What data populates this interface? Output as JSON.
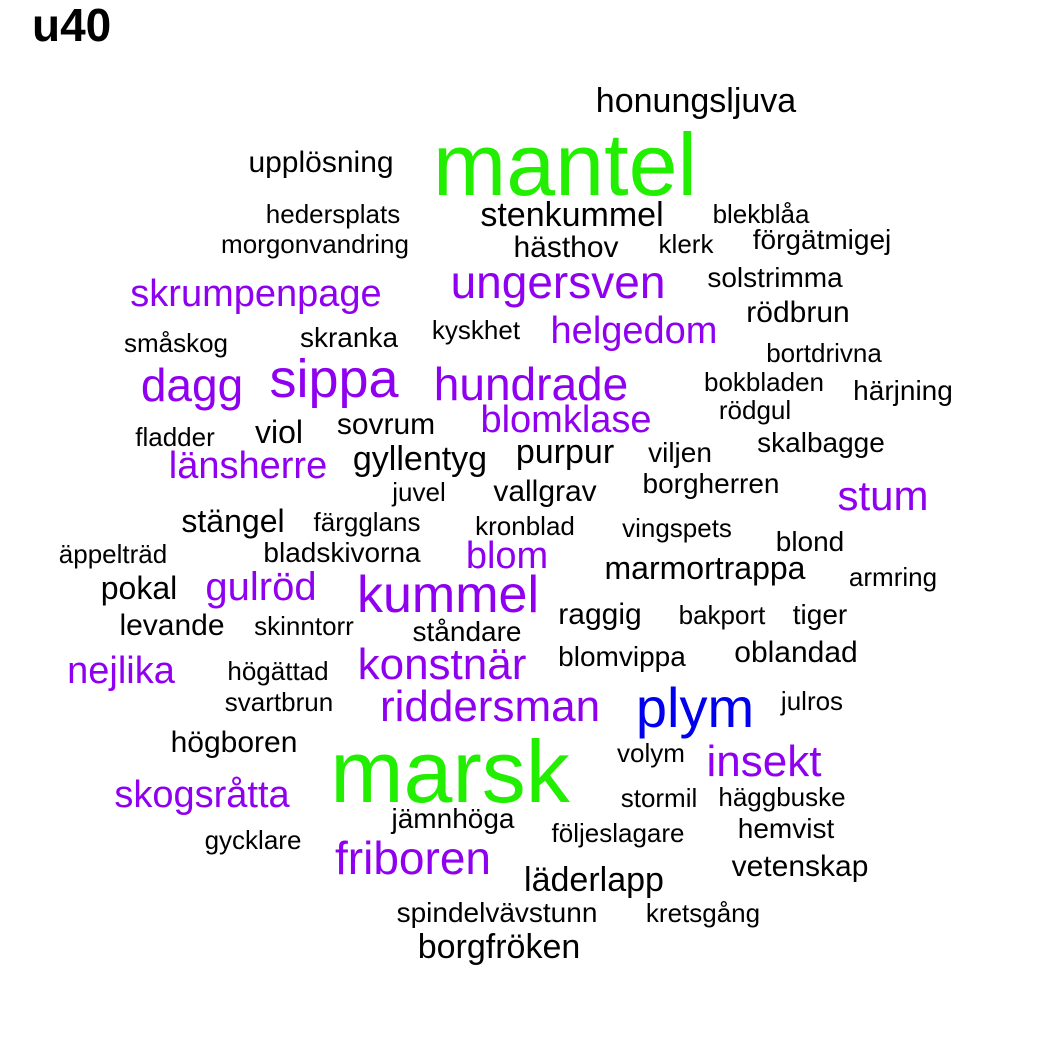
{
  "title": "u40",
  "colors": {
    "large": "#22ee00",
    "blue": "#0000ee",
    "purple": "#8f00f0",
    "black": "#000000"
  },
  "words": [
    {
      "text": "mantel",
      "color": "large"
    },
    {
      "text": "marsk",
      "color": "large"
    },
    {
      "text": "plym",
      "color": "blue"
    },
    {
      "text": "honungsljuva",
      "color": "black"
    },
    {
      "text": "upplösning",
      "color": "black"
    },
    {
      "text": "hedersplats",
      "color": "black"
    },
    {
      "text": "stenkummel",
      "color": "black"
    },
    {
      "text": "blekblåa",
      "color": "black"
    },
    {
      "text": "morgonvandring",
      "color": "black"
    },
    {
      "text": "hästhov",
      "color": "black"
    },
    {
      "text": "klerk",
      "color": "black"
    },
    {
      "text": "förgätmigej",
      "color": "black"
    },
    {
      "text": "skrumpenpage",
      "color": "purple"
    },
    {
      "text": "ungersven",
      "color": "purple"
    },
    {
      "text": "solstrimma",
      "color": "black"
    },
    {
      "text": "rödbrun",
      "color": "black"
    },
    {
      "text": "småskog",
      "color": "black"
    },
    {
      "text": "skranka",
      "color": "black"
    },
    {
      "text": "kyskhet",
      "color": "black"
    },
    {
      "text": "helgedom",
      "color": "purple"
    },
    {
      "text": "bortdrivna",
      "color": "black"
    },
    {
      "text": "dagg",
      "color": "purple"
    },
    {
      "text": "sippa",
      "color": "purple"
    },
    {
      "text": "hundrade",
      "color": "purple"
    },
    {
      "text": "bokbladen",
      "color": "black"
    },
    {
      "text": "härjning",
      "color": "black"
    },
    {
      "text": "rödgul",
      "color": "black"
    },
    {
      "text": "fladder",
      "color": "black"
    },
    {
      "text": "viol",
      "color": "black"
    },
    {
      "text": "sovrum",
      "color": "black"
    },
    {
      "text": "blomklase",
      "color": "purple"
    },
    {
      "text": "skalbagge",
      "color": "black"
    },
    {
      "text": "länsherre",
      "color": "purple"
    },
    {
      "text": "gyllentyg",
      "color": "black"
    },
    {
      "text": "purpur",
      "color": "black"
    },
    {
      "text": "viljen",
      "color": "black"
    },
    {
      "text": "juvel",
      "color": "black"
    },
    {
      "text": "vallgrav",
      "color": "black"
    },
    {
      "text": "borgherren",
      "color": "black"
    },
    {
      "text": "stum",
      "color": "purple"
    },
    {
      "text": "stängel",
      "color": "black"
    },
    {
      "text": "färgglans",
      "color": "black"
    },
    {
      "text": "kronblad",
      "color": "black"
    },
    {
      "text": "vingspets",
      "color": "black"
    },
    {
      "text": "blond",
      "color": "black"
    },
    {
      "text": "äppelträd",
      "color": "black"
    },
    {
      "text": "bladskivorna",
      "color": "black"
    },
    {
      "text": "blom",
      "color": "purple"
    },
    {
      "text": "marmortrappa",
      "color": "black"
    },
    {
      "text": "armring",
      "color": "black"
    },
    {
      "text": "pokal",
      "color": "black"
    },
    {
      "text": "gulröd",
      "color": "purple"
    },
    {
      "text": "kummel",
      "color": "purple"
    },
    {
      "text": "levande",
      "color": "black"
    },
    {
      "text": "skinntorr",
      "color": "black"
    },
    {
      "text": "ståndare",
      "color": "black"
    },
    {
      "text": "raggig",
      "color": "black"
    },
    {
      "text": "bakport",
      "color": "black"
    },
    {
      "text": "tiger",
      "color": "black"
    },
    {
      "text": "nejlika",
      "color": "purple"
    },
    {
      "text": "högättad",
      "color": "black"
    },
    {
      "text": "konstnär",
      "color": "purple"
    },
    {
      "text": "blomvippa",
      "color": "black"
    },
    {
      "text": "oblandad",
      "color": "black"
    },
    {
      "text": "svartbrun",
      "color": "black"
    },
    {
      "text": "riddersman",
      "color": "purple"
    },
    {
      "text": "julros",
      "color": "black"
    },
    {
      "text": "högboren",
      "color": "black"
    },
    {
      "text": "volym",
      "color": "black"
    },
    {
      "text": "insekt",
      "color": "purple"
    },
    {
      "text": "skogsråtta",
      "color": "purple"
    },
    {
      "text": "stormil",
      "color": "black"
    },
    {
      "text": "häggbuske",
      "color": "black"
    },
    {
      "text": "jämnhöga",
      "color": "black"
    },
    {
      "text": "följeslagare",
      "color": "black"
    },
    {
      "text": "hemvist",
      "color": "black"
    },
    {
      "text": "gycklare",
      "color": "black"
    },
    {
      "text": "friboren",
      "color": "purple"
    },
    {
      "text": "vetenskap",
      "color": "black"
    },
    {
      "text": "läderlapp",
      "color": "black"
    },
    {
      "text": "spindelvävstunn",
      "color": "black"
    },
    {
      "text": "kretsgång",
      "color": "black"
    },
    {
      "text": "borgfröken",
      "color": "black"
    }
  ]
}
